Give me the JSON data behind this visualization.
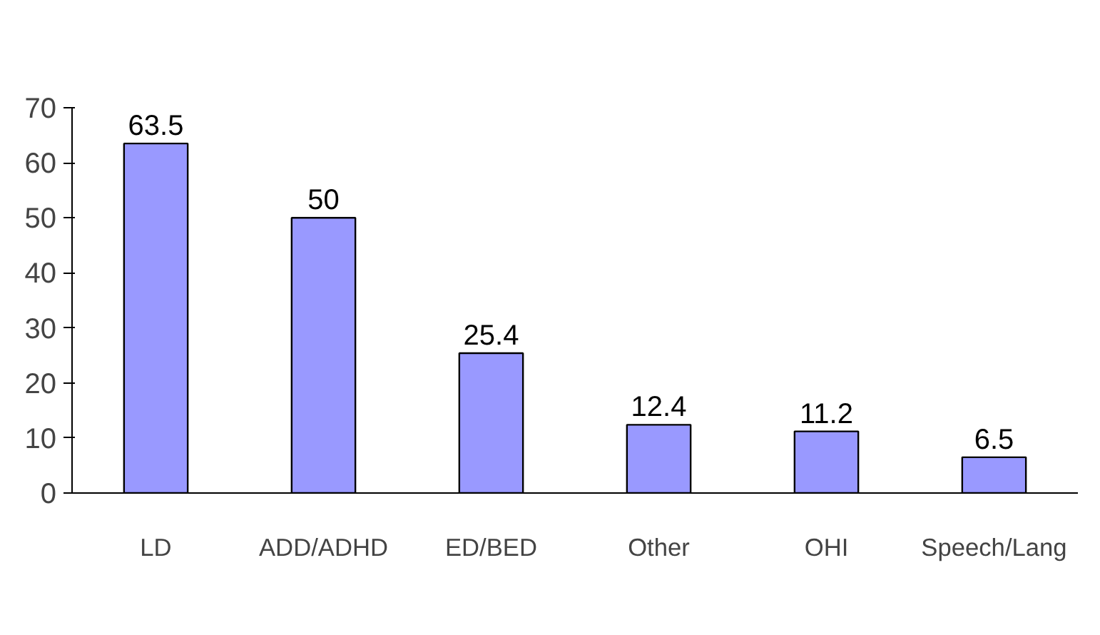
{
  "chart_data": {
    "type": "bar",
    "categories": [
      "LD",
      "ADD/ADHD",
      "ED/BED",
      "Other",
      "OHI",
      "Speech/Lang"
    ],
    "values": [
      63.5,
      50,
      25.4,
      12.4,
      11.2,
      6.5
    ],
    "color": "#9999ff",
    "ylim": [
      0,
      70
    ],
    "yticks": [
      0,
      10,
      20,
      30,
      40,
      50,
      60,
      70
    ],
    "data_labels": true
  }
}
